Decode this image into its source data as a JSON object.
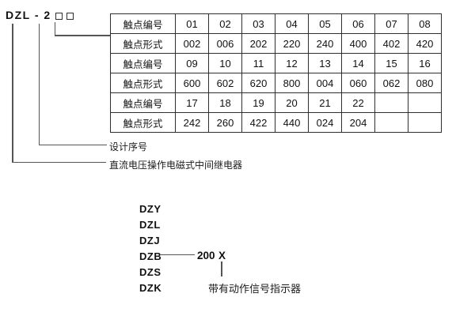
{
  "colors": {
    "background": "#ffffff",
    "table_border": "#2f2f2f",
    "connector_line": "#555555",
    "text": "#111111"
  },
  "model_code": {
    "text": "DZL - 2",
    "placeholders": "□□"
  },
  "spec_table": {
    "rows": [
      {
        "label": "触点编号",
        "values": [
          "01",
          "02",
          "03",
          "04",
          "05",
          "06",
          "07",
          "08"
        ]
      },
      {
        "label": "触点形式",
        "values": [
          "002",
          "006",
          "202",
          "220",
          "240",
          "400",
          "402",
          "420"
        ]
      },
      {
        "label": "触点编号",
        "values": [
          "09",
          "10",
          "11",
          "12",
          "13",
          "14",
          "15",
          "16"
        ]
      },
      {
        "label": "触点形式",
        "values": [
          "600",
          "602",
          "620",
          "800",
          "004",
          "060",
          "062",
          "080"
        ]
      },
      {
        "label": "触点编号",
        "values": [
          "17",
          "18",
          "19",
          "20",
          "21",
          "22",
          "",
          ""
        ]
      },
      {
        "label": "触点形式",
        "values": [
          "242",
          "260",
          "422",
          "440",
          "024",
          "204",
          "",
          ""
        ]
      }
    ]
  },
  "callouts": {
    "design_serial_label": "设计序号",
    "relay_type_label": "直流电压操作电磁式中间继电器"
  },
  "series": {
    "items": [
      "DZY",
      "DZL",
      "DZJ",
      "DZB",
      "DZS",
      "DZK"
    ],
    "dzb_code": "200",
    "dzb_variant": "X",
    "indicator_label": "带有动作信号指示器"
  }
}
